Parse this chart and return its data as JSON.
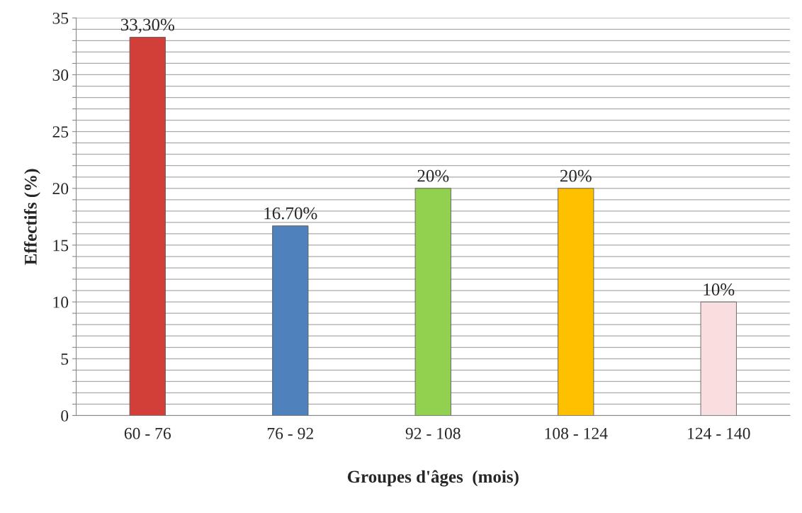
{
  "chart_data": {
    "type": "bar",
    "xlabel": "Groupes d'âges  (mois)",
    "ylabel": "Effectifs (%)",
    "categories": [
      "60 - 76",
      "76 - 92",
      "92 - 108",
      "108 - 124",
      "124 - 140"
    ],
    "values": [
      33.3,
      16.7,
      20,
      20,
      10
    ],
    "colors": [
      "#d13f38",
      "#4f81bd",
      "#92d050",
      "#ffc000",
      "#f8dede"
    ],
    "value_labels": [
      "33,30%",
      "16.70%",
      "20%",
      "20%",
      "10%"
    ],
    "ylim": [
      0,
      35
    ],
    "yticks": [
      0,
      {
        "value": 1,
        "label": null
      },
      {
        "value": 2,
        "label": null
      },
      {
        "value": 3,
        "label": null
      },
      {
        "value": 4,
        "label": null
      },
      5,
      {
        "value": 6,
        "label": null
      },
      {
        "value": 7,
        "label": null
      },
      {
        "value": 8,
        "label": null
      },
      {
        "value": 9,
        "label": null
      },
      10,
      {
        "value": 11,
        "label": null
      },
      {
        "value": 12,
        "label": null
      },
      {
        "value": 13,
        "label": null
      },
      {
        "value": 14,
        "label": null
      },
      15,
      {
        "value": 16,
        "label": null
      },
      {
        "value": 17,
        "label": null
      },
      {
        "value": 18,
        "label": null
      },
      {
        "value": 19,
        "label": null
      },
      20,
      {
        "value": 21,
        "label": null
      },
      {
        "value": 22,
        "label": null
      },
      {
        "value": 23,
        "label": null
      },
      {
        "value": 24,
        "label": null
      },
      25,
      {
        "value": 26,
        "label": null
      },
      {
        "value": 27,
        "label": null
      },
      {
        "value": 28,
        "label": null
      },
      {
        "value": 29,
        "label": null
      },
      30,
      {
        "value": 31,
        "label": null
      },
      {
        "value": 32,
        "label": null
      },
      {
        "value": 33,
        "label": null
      },
      {
        "value": 34,
        "label": null
      },
      35
    ],
    "grid": "y"
  }
}
